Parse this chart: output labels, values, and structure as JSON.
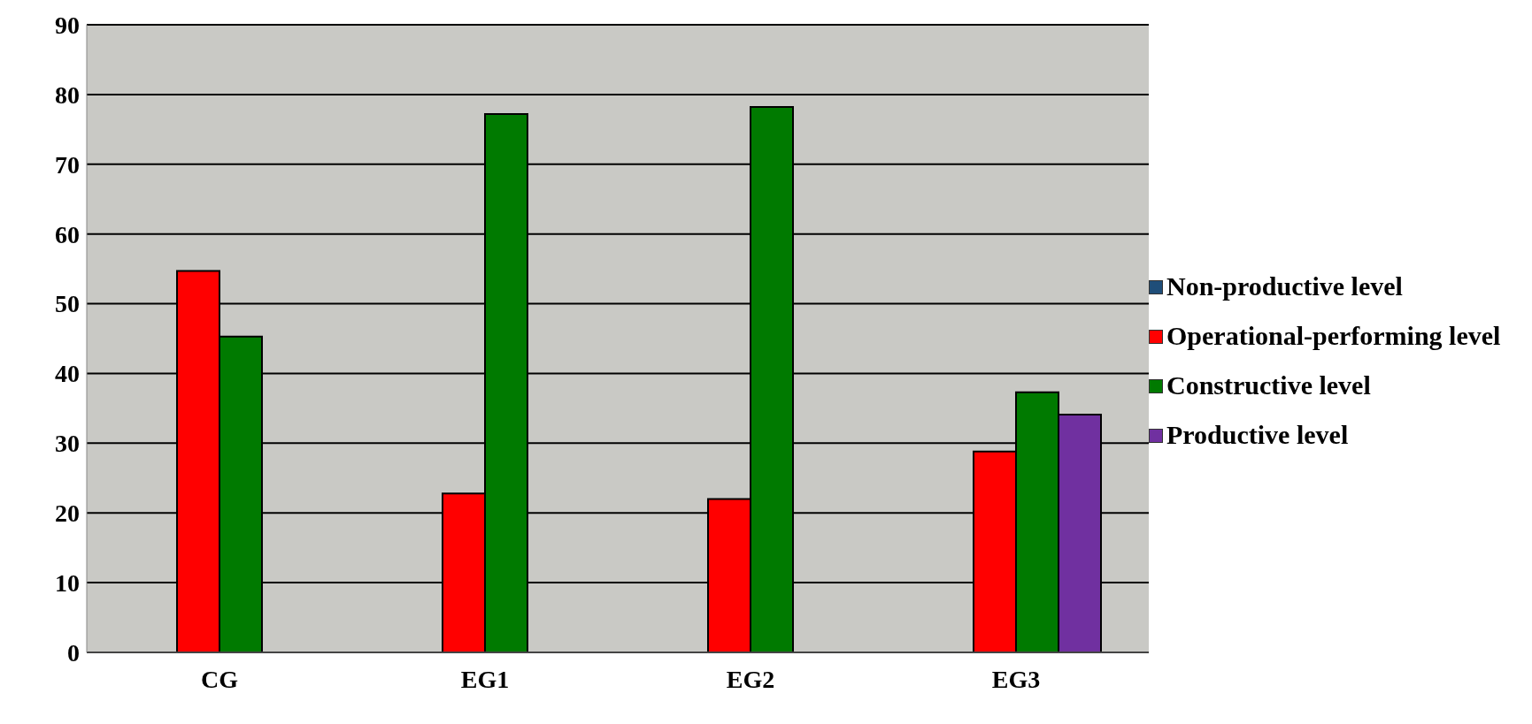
{
  "chart_data": {
    "type": "bar",
    "categories": [
      "CG",
      "EG1",
      "EG2",
      "EG3"
    ],
    "series": [
      {
        "name": "Non-productive level",
        "color": "#1f4e79",
        "values": [
          0,
          0,
          0,
          0
        ]
      },
      {
        "name": "Operational-performing level",
        "color": "#ff0000",
        "values": [
          54.7,
          22.8,
          22.0,
          28.8
        ]
      },
      {
        "name": "Constructive level",
        "color": "#007a00",
        "values": [
          45.3,
          77.2,
          78.2,
          37.3
        ]
      },
      {
        "name": "Productive level",
        "color": "#7030a0",
        "values": [
          0,
          0,
          0,
          34.1
        ]
      }
    ],
    "ylim": [
      0,
      90
    ],
    "yticks": [
      0,
      10,
      20,
      30,
      40,
      50,
      60,
      70,
      80,
      90
    ],
    "grid": "y",
    "legend": "right"
  }
}
